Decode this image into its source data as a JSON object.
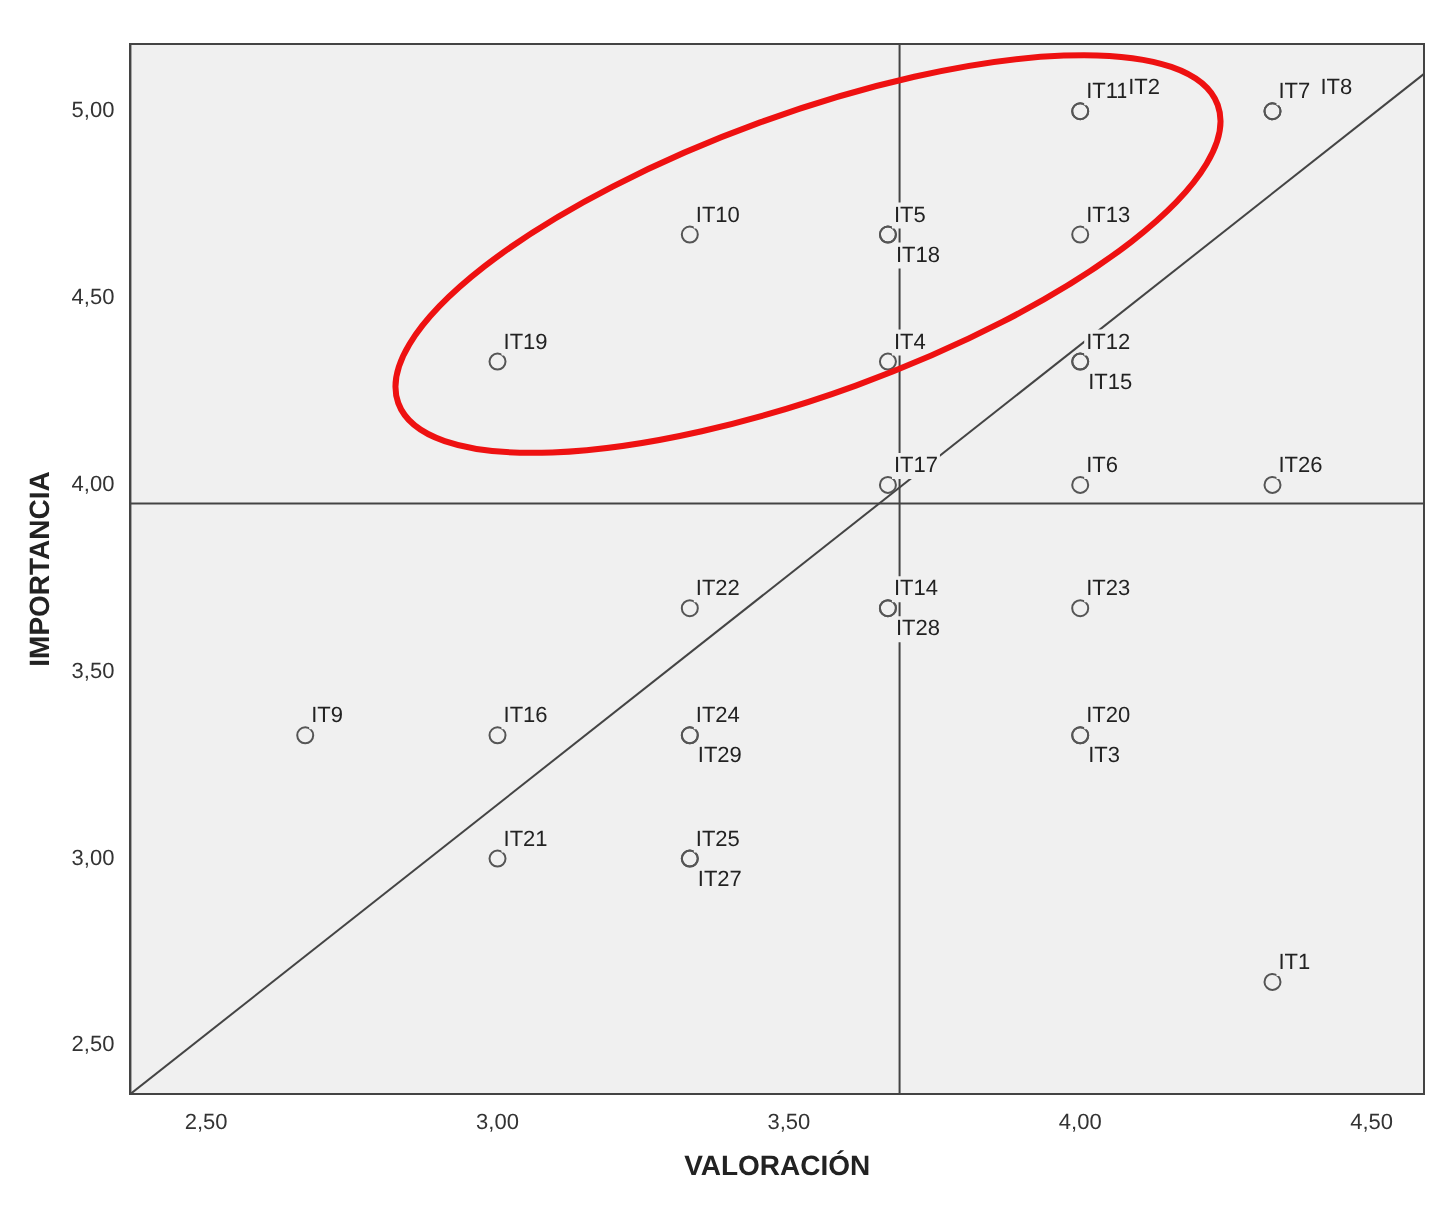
{
  "chart_data": {
    "type": "scatter",
    "xlabel": "VALORACIÓN",
    "ylabel": "IMPORTANCIA",
    "xlim": [
      2.37,
      4.59
    ],
    "ylim": [
      2.37,
      5.18
    ],
    "xticks": [
      {
        "value": 2.5,
        "label": "2,50"
      },
      {
        "value": 3,
        "label": "3,00"
      },
      {
        "value": 3.5,
        "label": "3,50"
      },
      {
        "value": 4,
        "label": "4,00"
      },
      {
        "value": 4.5,
        "label": "4,50"
      }
    ],
    "yticks": [
      {
        "value": 2.5,
        "label": "2,50"
      },
      {
        "value": 3,
        "label": "3,00"
      },
      {
        "value": 3.5,
        "label": "3,50"
      },
      {
        "value": 4,
        "label": "4,00"
      },
      {
        "value": 4.5,
        "label": "4,50"
      },
      {
        "value": 5,
        "label": "5,00"
      }
    ],
    "grid": false,
    "legend": false,
    "marker": "circle",
    "series": [
      {
        "type": "scatter",
        "color": "#555555",
        "x": [
          4.33,
          4,
          4,
          3.67,
          3.67,
          4,
          4.33,
          4.33,
          2.67,
          3.33,
          4,
          4,
          4,
          3.67,
          4,
          3,
          3.67,
          3.67,
          3,
          4,
          3,
          3.33,
          4,
          3.33,
          3.33,
          4.33,
          3.33,
          3.67,
          3.33
        ],
        "values": [
          2.67,
          5,
          3.33,
          4.33,
          4.67,
          4,
          5,
          5,
          3.33,
          4.67,
          5,
          4.33,
          4.67,
          3.67,
          4.33,
          3.33,
          4,
          4.67,
          4.33,
          3.33,
          3,
          3.67,
          3.67,
          3.33,
          3,
          4,
          3,
          3.67,
          3.33
        ]
      },
      {
        "type": "line",
        "color": "#444444",
        "marker": "none",
        "x": [
          2.37,
          4.59
        ],
        "values": [
          2.37,
          5.1
        ]
      }
    ],
    "ref_lines": [
      {
        "axis": "x",
        "value": 3.69,
        "color": "#444444"
      },
      {
        "axis": "y",
        "value": 3.95,
        "color": "#444444"
      }
    ],
    "annotations": [
      {
        "text": "IT1",
        "x": 4.33,
        "y": 2.67
      },
      {
        "text": "IT11",
        "x": 4,
        "y": 5
      },
      {
        "text": "IT20",
        "x": 4,
        "y": 3.33
      },
      {
        "text": "IT4",
        "x": 3.67,
        "y": 4.33
      },
      {
        "text": "IT5",
        "x": 3.67,
        "y": 4.67
      },
      {
        "text": "IT6",
        "x": 4,
        "y": 4
      },
      {
        "text": "IT7",
        "x": 4.33,
        "y": 5
      },
      {
        "text": "IT8",
        "x": 4.33,
        "y": 5
      },
      {
        "text": "IT9",
        "x": 2.67,
        "y": 3.33
      },
      {
        "text": "IT10",
        "x": 3.33,
        "y": 4.67
      },
      {
        "text": "IT2",
        "x": 4,
        "y": 5
      },
      {
        "text": "IT12",
        "x": 4,
        "y": 4.33
      },
      {
        "text": "IT13",
        "x": 4,
        "y": 4.67
      },
      {
        "text": "IT14",
        "x": 3.67,
        "y": 3.67
      },
      {
        "text": "IT15",
        "x": 4,
        "y": 4.33
      },
      {
        "text": "IT16",
        "x": 3,
        "y": 3.33
      },
      {
        "text": "IT17",
        "x": 3.67,
        "y": 4
      },
      {
        "text": "IT18",
        "x": 3.67,
        "y": 4.67
      },
      {
        "text": "IT19",
        "x": 3,
        "y": 4.33
      },
      {
        "text": "IT3",
        "x": 4,
        "y": 3.33
      },
      {
        "text": "IT21",
        "x": 3,
        "y": 3
      },
      {
        "text": "IT22",
        "x": 3.33,
        "y": 3.67
      },
      {
        "text": "IT23",
        "x": 4,
        "y": 3.67
      },
      {
        "text": "IT24",
        "x": 3.33,
        "y": 3.33
      },
      {
        "text": "IT25",
        "x": 3.33,
        "y": 3
      },
      {
        "text": "IT26",
        "x": 4.33,
        "y": 4
      },
      {
        "text": "IT27",
        "x": 3.33,
        "y": 3
      },
      {
        "text": "IT28",
        "x": 3.67,
        "y": 3.67
      },
      {
        "text": "IT29",
        "x": 3.33,
        "y": 3.33
      }
    ]
  }
}
